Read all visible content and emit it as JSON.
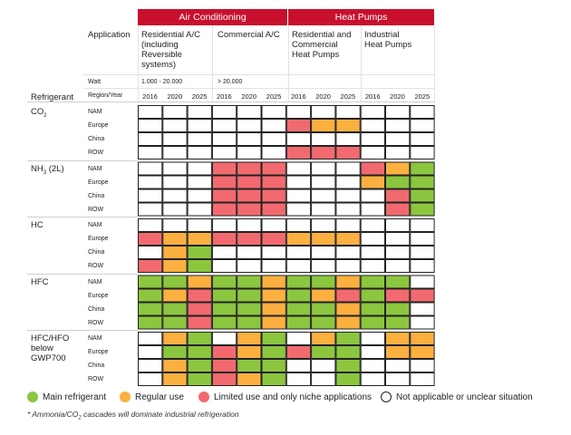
{
  "header": {
    "group_air": "Air Conditioning",
    "group_heat": "Heat Pumps",
    "application_label": "Application",
    "watt_label": "Watt",
    "refrigerant_label": "Refrigerant",
    "region_year_label": "Region/Year",
    "apps": [
      {
        "label": "Residential A/C\n(including\nReversible\nsystems)",
        "watt": "1.000 - 20.000"
      },
      {
        "label": "Commercial A/C",
        "watt": "> 20.000"
      },
      {
        "label": "Residential and\nCommercial\nHeat Pumps",
        "watt": ""
      },
      {
        "label": "Industrial\nHeat Pumps",
        "watt": ""
      }
    ]
  },
  "colors": {
    "band": "#c8102e",
    "main": "#8cc63f",
    "regular": "#fbb040",
    "limited": "#f26a6f",
    "na": "#ffffff"
  },
  "chart_data": {
    "type": "table",
    "years": [
      "2016",
      "2020",
      "2025"
    ],
    "regions": [
      "NAM",
      "Europe",
      "China",
      "ROW"
    ],
    "refrigerants": [
      {
        "name": "CO",
        "sub": "2",
        "rows": [
          [
            "N",
            "N",
            "N",
            "N",
            "N",
            "N",
            "N",
            "N",
            "N",
            "N",
            "N",
            "N"
          ],
          [
            "N",
            "N",
            "N",
            "N",
            "N",
            "N",
            "L",
            "R",
            "R",
            "N",
            "N",
            "N"
          ],
          [
            "N",
            "N",
            "N",
            "N",
            "N",
            "N",
            "N",
            "N",
            "N",
            "N",
            "N",
            "N"
          ],
          [
            "N",
            "N",
            "N",
            "N",
            "N",
            "N",
            "L",
            "L",
            "L",
            "N",
            "N",
            "N"
          ]
        ]
      },
      {
        "name": "NH",
        "sub": "3",
        "suffix": " (2L)",
        "rows": [
          [
            "N",
            "N",
            "N",
            "L",
            "L",
            "L",
            "N",
            "N",
            "N",
            "L",
            "R",
            "M"
          ],
          [
            "N",
            "N",
            "N",
            "L",
            "L",
            "L",
            "N",
            "N",
            "N",
            "R",
            "M",
            "M"
          ],
          [
            "N",
            "N",
            "N",
            "L",
            "L",
            "L",
            "N",
            "N",
            "N",
            "N",
            "L",
            "M"
          ],
          [
            "N",
            "N",
            "N",
            "L",
            "L",
            "L",
            "N",
            "N",
            "N",
            "N",
            "L",
            "M"
          ]
        ]
      },
      {
        "name": "HC",
        "rows": [
          [
            "N",
            "N",
            "N",
            "N",
            "N",
            "N",
            "N",
            "N",
            "N",
            "N",
            "N",
            "N"
          ],
          [
            "L",
            "R",
            "R",
            "L",
            "L",
            "L",
            "R",
            "R",
            "R",
            "N",
            "N",
            "N"
          ],
          [
            "N",
            "R",
            "M",
            "N",
            "N",
            "N",
            "N",
            "N",
            "N",
            "N",
            "N",
            "N"
          ],
          [
            "L",
            "R",
            "M",
            "N",
            "N",
            "N",
            "N",
            "N",
            "N",
            "N",
            "N",
            "N"
          ]
        ]
      },
      {
        "name": "HFC",
        "rows": [
          [
            "M",
            "M",
            "R",
            "M",
            "M",
            "R",
            "M",
            "M",
            "R",
            "M",
            "M",
            "N"
          ],
          [
            "M",
            "R",
            "L",
            "M",
            "M",
            "R",
            "M",
            "R",
            "L",
            "M",
            "L",
            "L"
          ],
          [
            "M",
            "M",
            "L",
            "M",
            "M",
            "R",
            "M",
            "M",
            "R",
            "M",
            "M",
            "N"
          ],
          [
            "M",
            "M",
            "L",
            "M",
            "M",
            "R",
            "M",
            "M",
            "R",
            "M",
            "M",
            "N"
          ]
        ]
      },
      {
        "name": "HFC/HFO\nbelow\nGWP700",
        "rows": [
          [
            "N",
            "R",
            "M",
            "N",
            "R",
            "M",
            "N",
            "R",
            "M",
            "N",
            "R",
            "R"
          ],
          [
            "N",
            "M",
            "M",
            "L",
            "R",
            "M",
            "L",
            "M",
            "M",
            "N",
            "R",
            "R"
          ],
          [
            "N",
            "R",
            "M",
            "L",
            "M",
            "M",
            "N",
            "N",
            "M",
            "N",
            "N",
            "N"
          ],
          [
            "N",
            "R",
            "M",
            "L",
            "R",
            "M",
            "N",
            "N",
            "M",
            "N",
            "N",
            "N"
          ]
        ]
      }
    ],
    "legend": [
      {
        "key": "M",
        "label": "Main refrigerant"
      },
      {
        "key": "R",
        "label": "Regular use"
      },
      {
        "key": "L",
        "label": "Limited use and only niche applications"
      },
      {
        "key": "N",
        "label": "Not applicable or unclear situation"
      }
    ]
  },
  "footnote": {
    "pre": "* Ammonia/CO",
    "sub": "2",
    "post": " cascades will dominate industrial refrigeration"
  }
}
